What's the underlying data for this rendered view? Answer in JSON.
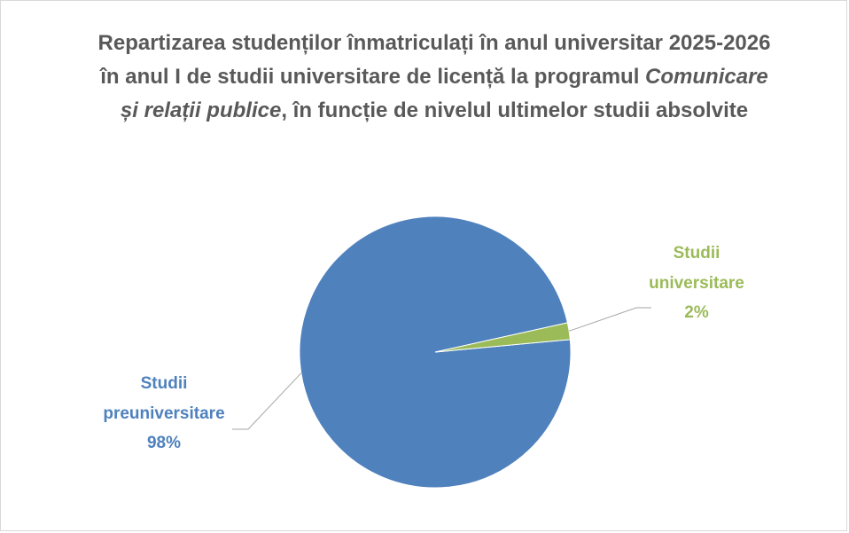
{
  "chart_data": {
    "type": "pie",
    "title": [
      {
        "text": "Repartizarea studenților înmatriculați în anul universitar 2025-2026 în anul I de studii universitare de licență la programul ",
        "italic": false
      },
      {
        "text": "Comunicare și relații publice",
        "italic": true
      },
      {
        "text": ", în funcție de nivelul ultimelor studii absolvite",
        "italic": false
      }
    ],
    "categories": [
      "Studii preuniversitare",
      "Studii universitare"
    ],
    "values": [
      98,
      2
    ],
    "value_labels": [
      "98%",
      "2%"
    ],
    "colors": [
      "#4f81bd",
      "#9bbb59"
    ]
  }
}
